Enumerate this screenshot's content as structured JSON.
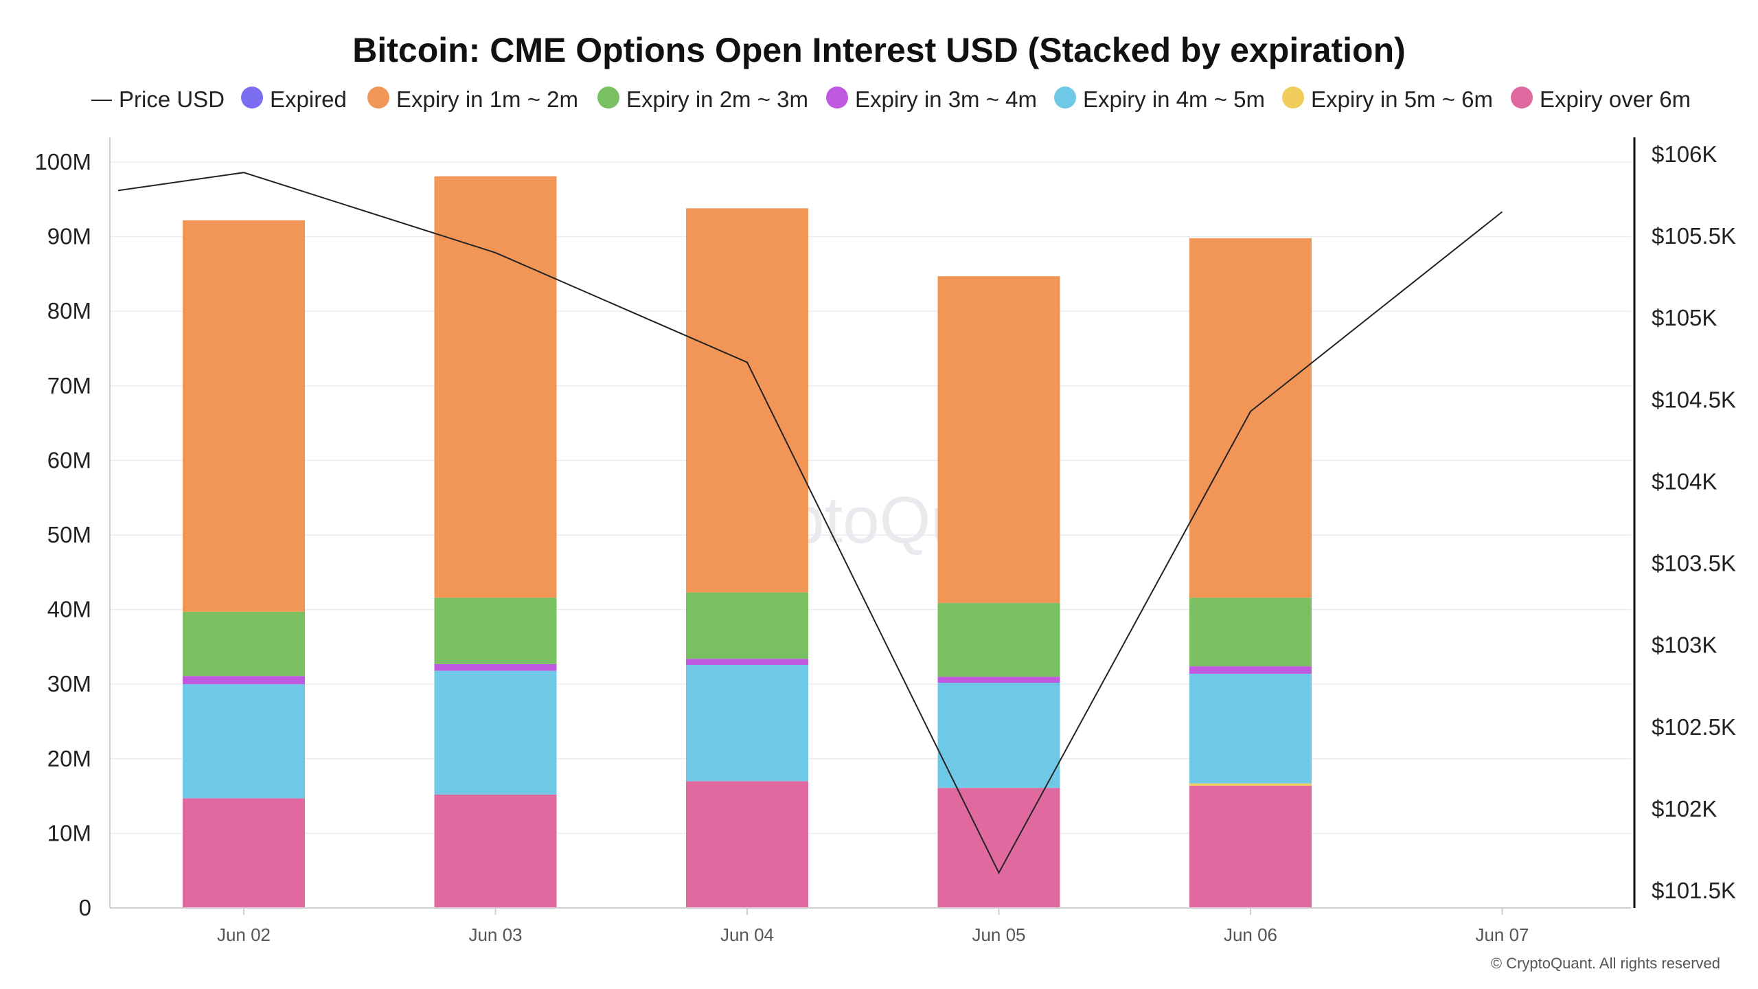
{
  "chart_data": {
    "type": "bar",
    "stacked": true,
    "title": "Bitcoin: CME Options Open Interest USD (Stacked by expiration)",
    "categories": [
      "Jun 02",
      "Jun 03",
      "Jun 04",
      "Jun 05",
      "Jun 06",
      "Jun 07"
    ],
    "ylim": [
      0,
      100000000
    ],
    "y_ticks": [
      0,
      10000000,
      20000000,
      30000000,
      40000000,
      50000000,
      60000000,
      70000000,
      80000000,
      90000000,
      100000000
    ],
    "y_tick_labels": [
      "0",
      "10M",
      "20M",
      "30M",
      "40M",
      "50M",
      "60M",
      "70M",
      "80M",
      "90M",
      "100M"
    ],
    "y2lim": [
      101400,
      106100
    ],
    "y2_ticks": [
      101500,
      102000,
      102500,
      103000,
      103500,
      104000,
      104500,
      105000,
      105500,
      106000
    ],
    "y2_tick_labels": [
      "$101.5K",
      "$102K",
      "$102.5K",
      "$103K",
      "$103.5K",
      "$104K",
      "$104.5K",
      "$105K",
      "$105.5K",
      "$106K"
    ],
    "legend_position": "top",
    "grid": true,
    "series": [
      {
        "name": "Expiry over 6m",
        "color": "#e06aa0",
        "values": [
          14.7,
          15.2,
          17.0,
          16.1,
          16.4,
          null
        ]
      },
      {
        "name": "Expiry in 5m ~ 6m",
        "color": "#f0cc5c",
        "values": [
          0.0,
          0.0,
          0.0,
          0.0,
          0.3,
          null
        ]
      },
      {
        "name": "Expiry in 4m ~ 5m",
        "color": "#6fc8e6",
        "values": [
          15.3,
          16.6,
          15.6,
          14.1,
          14.7,
          null
        ]
      },
      {
        "name": "Expiry in 3m ~ 4m",
        "color": "#c158e0",
        "values": [
          1.1,
          0.9,
          0.8,
          0.8,
          1.0,
          null
        ]
      },
      {
        "name": "Expiry in 2m ~ 3m",
        "color": "#78c062",
        "values": [
          8.6,
          8.9,
          8.9,
          9.9,
          9.2,
          null
        ]
      },
      {
        "name": "Expiry in 1m ~ 2m",
        "color": "#f29658",
        "values": [
          52.5,
          56.5,
          51.5,
          43.8,
          48.2,
          null
        ]
      },
      {
        "name": "Expired",
        "color": "#7b6ef0",
        "values": [
          0,
          0,
          0,
          0,
          0,
          null
        ]
      }
    ],
    "value_unit_multiplier": 1000000,
    "price_series": {
      "name": "Price USD",
      "color": "#222222",
      "values": [
        105780,
        105890,
        105400,
        104730,
        101610,
        104430,
        105650
      ]
    },
    "price_x_positions": [
      -0.5,
      0,
      1,
      2,
      3,
      4,
      5
    ],
    "legend": [
      {
        "name": "Price USD",
        "kind": "line",
        "color": "#222222"
      },
      {
        "name": "Expired",
        "kind": "dot",
        "color": "#7b6ef0"
      },
      {
        "name": "Expiry in 1m ~ 2m",
        "kind": "dot",
        "color": "#f29658"
      },
      {
        "name": "Expiry in 2m ~ 3m",
        "kind": "dot",
        "color": "#78c062"
      },
      {
        "name": "Expiry in 3m ~ 4m",
        "kind": "dot",
        "color": "#c158e0"
      },
      {
        "name": "Expiry in 4m ~ 5m",
        "kind": "dot",
        "color": "#6fc8e6"
      },
      {
        "name": "Expiry in 5m ~ 6m",
        "kind": "dot",
        "color": "#f0cc5c"
      },
      {
        "name": "Expiry over 6m",
        "kind": "dot",
        "color": "#e06aa0"
      }
    ]
  },
  "watermark": "CryptoQuant",
  "copyright": "© CryptoQuant. All rights reserved"
}
